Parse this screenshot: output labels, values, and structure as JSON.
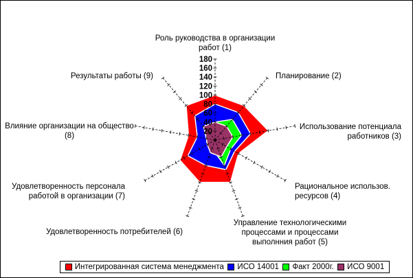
{
  "chart_data": {
    "type": "radar",
    "title": "",
    "rmax": 180,
    "ticks": [
      20,
      40,
      60,
      80,
      100,
      120,
      140,
      160,
      180
    ],
    "categories": [
      [
        "Роль руководства в организации",
        "работ (1)"
      ],
      [
        "Планирование (2)"
      ],
      [
        "Использование потенциала",
        "работников (3)"
      ],
      [
        "Рациональное использов.",
        "ресурсов (4)"
      ],
      [
        "Управление технологическими",
        "процессами и процессами",
        "выполнния работ (5)"
      ],
      [
        "Удовлетворенность потребителей (6)"
      ],
      [
        "Удовлетворенность персонала",
        "работой в организации (7)"
      ],
      [
        "Влияние организации на общество",
        "(8)"
      ],
      [
        "Результаты работы (9)"
      ]
    ],
    "series": [
      {
        "name": "Интегрированная система менеджмента",
        "color": "#ff0000",
        "values": [
          100,
          100,
          120,
          60,
          100,
          100,
          90,
          60,
          100
        ]
      },
      {
        "name": "ИСО 14001",
        "color": "#0000ff",
        "values": [
          80,
          80,
          80,
          50,
          70,
          60,
          70,
          40,
          70
        ]
      },
      {
        "name": "Факт 2000г.",
        "color": "#00ff00",
        "values": [
          40,
          60,
          60,
          40,
          60,
          20,
          20,
          20,
          20
        ]
      },
      {
        "name": "ИСО 9001",
        "color": "#993366",
        "values": [
          40,
          40,
          40,
          30,
          40,
          30,
          20,
          20,
          40
        ]
      }
    ],
    "legend_position": "bottom"
  }
}
